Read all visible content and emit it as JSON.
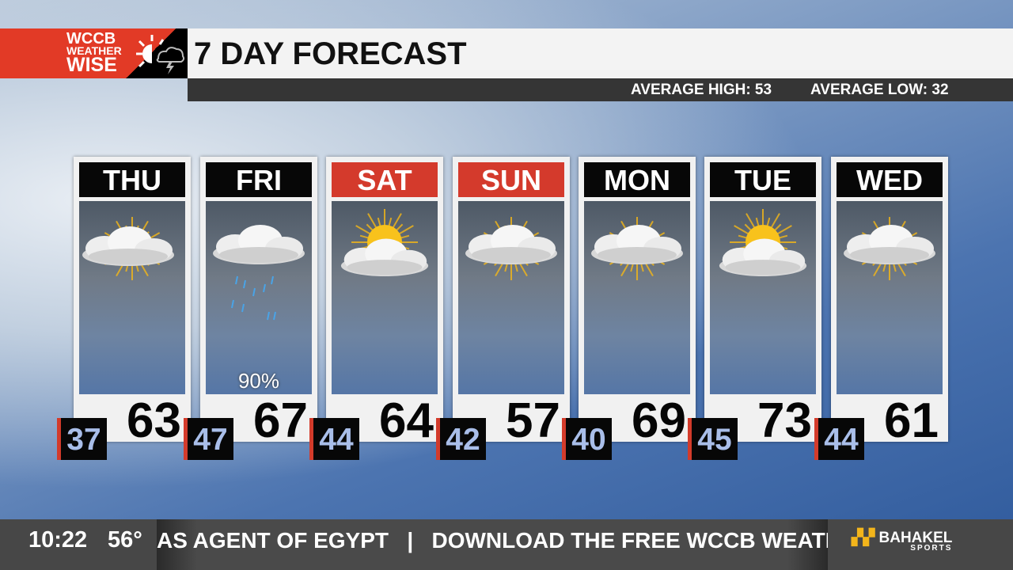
{
  "header": {
    "logo": {
      "line1": "WCCB",
      "line2": "WEATHER",
      "line3": "WISE"
    },
    "title": "7 DAY FORECAST",
    "average_high": "AVERAGE HIGH: 53",
    "average_low": "AVERAGE LOW: 32"
  },
  "days": [
    {
      "name": "THU",
      "weekend": false,
      "icon": "partly-cloudy-sun-behind",
      "high": "63",
      "low": "37",
      "precip": ""
    },
    {
      "name": "FRI",
      "weekend": false,
      "icon": "rain-cloud",
      "high": "67",
      "low": "47",
      "precip": "90%"
    },
    {
      "name": "SAT",
      "weekend": true,
      "icon": "mostly-sunny",
      "high": "64",
      "low": "44",
      "precip": ""
    },
    {
      "name": "SUN",
      "weekend": true,
      "icon": "partly-cloudy",
      "high": "57",
      "low": "42",
      "precip": ""
    },
    {
      "name": "MON",
      "weekend": false,
      "icon": "partly-cloudy",
      "high": "69",
      "low": "40",
      "precip": ""
    },
    {
      "name": "TUE",
      "weekend": false,
      "icon": "mostly-sunny",
      "high": "73",
      "low": "45",
      "precip": ""
    },
    {
      "name": "WED",
      "weekend": false,
      "icon": "partly-cloudy",
      "high": "61",
      "low": "44",
      "precip": ""
    }
  ],
  "ticker": {
    "time": "10:22",
    "temperature": "56°",
    "crawl": "AS AGENT OF EGYPT   |   DOWNLOAD THE FREE WCCB WEATHER",
    "sponsor": "BAHAKEL",
    "sponsor_sub": "SPORTS"
  },
  "colors": {
    "weekend_header": "#d43a2c",
    "logo_red": "#e23a26",
    "low_text": "#a9bee9"
  }
}
